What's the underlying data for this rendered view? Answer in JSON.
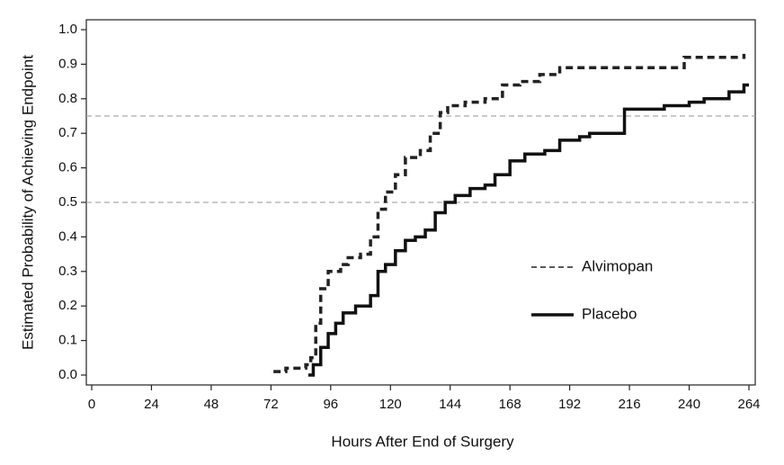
{
  "chart_data": {
    "type": "line",
    "step": true,
    "x_label": "Hours After End of Surgery",
    "y_label": "Estimated Probability of Achieving Endpoint",
    "xlim": [
      0,
      264
    ],
    "xticks": [
      0,
      24,
      48,
      72,
      96,
      120,
      144,
      168,
      192,
      216,
      240,
      264
    ],
    "ylim": [
      0,
      1
    ],
    "yticks": [
      {
        "value": 0,
        "label": "0.0"
      },
      0.1,
      0.2,
      0.3,
      0.4,
      0.5,
      0.6,
      0.7,
      0.8,
      0.9,
      {
        "value": 1,
        "label": "1.0"
      }
    ],
    "hlines": [
      0.5,
      0.75
    ],
    "legend": "right",
    "series": [
      {
        "name": "Alvimopan",
        "color": "#222222",
        "dash": true,
        "x": [
          73,
          78,
          86,
          88,
          90,
          92,
          95,
          100,
          103,
          108,
          112,
          115,
          118,
          122,
          126,
          132,
          136,
          140,
          143,
          150,
          158,
          165,
          172,
          180,
          188,
          230,
          238,
          252,
          262
        ],
        "values": [
          0.01,
          0.02,
          0.03,
          0.05,
          0.15,
          0.25,
          0.3,
          0.32,
          0.34,
          0.35,
          0.4,
          0.48,
          0.53,
          0.58,
          0.63,
          0.65,
          0.7,
          0.76,
          0.78,
          0.79,
          0.8,
          0.84,
          0.85,
          0.87,
          0.89,
          0.89,
          0.92,
          0.92,
          0.93
        ]
      },
      {
        "name": "Placebo",
        "color": "#111111",
        "dash": false,
        "x": [
          87,
          89,
          92,
          95,
          98,
          101,
          106,
          112,
          115,
          118,
          122,
          126,
          130,
          134,
          138,
          142,
          146,
          152,
          158,
          162,
          168,
          174,
          182,
          188,
          196,
          200,
          210,
          214,
          224,
          230,
          240,
          246,
          256,
          262,
          264
        ],
        "values": [
          0.0,
          0.03,
          0.08,
          0.12,
          0.15,
          0.18,
          0.2,
          0.23,
          0.3,
          0.32,
          0.36,
          0.39,
          0.4,
          0.42,
          0.47,
          0.5,
          0.52,
          0.54,
          0.55,
          0.58,
          0.62,
          0.64,
          0.65,
          0.68,
          0.69,
          0.7,
          0.7,
          0.77,
          0.77,
          0.78,
          0.79,
          0.8,
          0.82,
          0.84,
          0.84
        ]
      }
    ]
  }
}
